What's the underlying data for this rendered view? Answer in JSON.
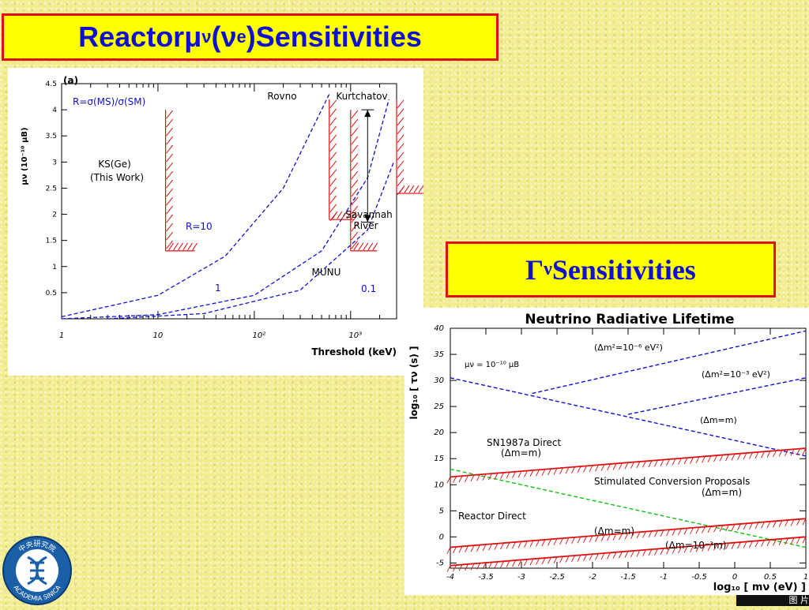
{
  "title": {
    "prefix": "Reactor ",
    "mu": "μ",
    "mu_sub": "ν",
    "paren_open": "(",
    "nu": "ν",
    "nu_sub": "e",
    "paren_close": ")",
    "suffix": " Sensitivities"
  },
  "gamma_title": {
    "gamma": "Γ",
    "sub": "ν",
    "text": " Sensitivities"
  },
  "chart_data": [
    {
      "type": "line",
      "panel_label": "(a)",
      "ylabel": "μν (10⁻¹⁰ μB)",
      "xlabel": "Threshold (keV)",
      "x_scale": "log",
      "xlim": [
        1,
        3000
      ],
      "ylim": [
        0,
        4.5
      ],
      "y_ticks": [
        "0.5",
        "1",
        "1.5",
        "2",
        "2.5",
        "3",
        "3.5",
        "4",
        "4.5"
      ],
      "x_ticks": [
        "1",
        "10",
        "10²",
        "10³"
      ],
      "annotation_ratio": "R=σ(MS)/σ(SM)",
      "series": [
        {
          "name": "R=10",
          "style": "dashed",
          "color": "#1010d0",
          "x": [
            1,
            10,
            50,
            200,
            600
          ],
          "y": [
            0.04,
            0.45,
            1.2,
            2.5,
            4.3
          ]
        },
        {
          "name": "1",
          "style": "dashed",
          "color": "#1010d0",
          "x": [
            1,
            10,
            100,
            500,
            1500,
            2500
          ],
          "y": [
            0.0,
            0.08,
            0.45,
            1.3,
            2.7,
            4.2
          ]
        },
        {
          "name": "0.1",
          "style": "dashed",
          "color": "#1010d0",
          "x": [
            3,
            30,
            300,
            1500,
            2800
          ],
          "y": [
            0.0,
            0.1,
            0.55,
            1.7,
            3.0
          ]
        }
      ],
      "experiments": [
        {
          "label": "KS(Ge)\n(This Work)",
          "x": 12,
          "ymin": 1.3,
          "ymax": 4.0,
          "xwidth": 1.6
        },
        {
          "label": "Rovno",
          "x": 600,
          "ymin": 1.9,
          "ymax": 4.2,
          "xwidth": 1.4
        },
        {
          "label": "MUNU",
          "x": 1000,
          "ymin": 1.3,
          "ymax": 4.0,
          "xwidth": 1.5
        },
        {
          "label": "Kurtchatov",
          "x": 3000,
          "ymin": 2.4,
          "ymax": 4.2,
          "xwidth": 1.6
        }
      ],
      "arrow": {
        "label": "Savannah\nRiver",
        "x": 1500,
        "ymin": 1.85,
        "ymax": 4.0
      }
    },
    {
      "type": "line",
      "title": "Neutrino Radiative Lifetime",
      "ylabel": "log₁₀ [ τν (s) ]",
      "xlabel": "log₁₀ [ mν (eV) ]",
      "xlim": [
        -4,
        1
      ],
      "ylim": [
        -6,
        40
      ],
      "x_ticks": [
        "-4",
        "-3.5",
        "-3",
        "-2.5",
        "-2",
        "-1.5",
        "-1",
        "-0.5",
        "0",
        "0.5",
        "1"
      ],
      "y_ticks": [
        "-5",
        "0",
        "5",
        "10",
        "15",
        "20",
        "25",
        "30",
        "35",
        "40"
      ],
      "series": [
        {
          "name": "μν = 10⁻¹⁰ μB",
          "style": "dashed",
          "color": "#1010d0",
          "x": [
            -4,
            1
          ],
          "y": [
            30.5,
            15.5
          ]
        },
        {
          "name": "(Δm²=10⁻⁶ eV²)",
          "style": "dashed",
          "color": "#1010d0",
          "x": [
            -2.85,
            1
          ],
          "y": [
            27.5,
            39.5
          ]
        },
        {
          "name": "(Δm²=10⁻³ eV²)",
          "style": "dashed",
          "color": "#1010d0",
          "x": [
            -1.5,
            1
          ],
          "y": [
            23.5,
            30.5
          ]
        },
        {
          "name": "Stimulated Conversion Proposals",
          "style": "dashed",
          "color": "#10c010",
          "x": [
            -4,
            1
          ],
          "y": [
            13.0,
            -2.0
          ]
        },
        {
          "name": "SN1987a Direct (Δm=m)",
          "style": "hatched",
          "color": "#e01010",
          "x": [
            -4,
            1
          ],
          "y": [
            11.5,
            17.0
          ]
        },
        {
          "name": "Reactor Direct (Δm=m)",
          "style": "hatched",
          "color": "#e01010",
          "x": [
            -4,
            1
          ],
          "y": [
            -2.0,
            3.5
          ]
        },
        {
          "name": "(Δm=10⁻³m)",
          "style": "hatched",
          "color": "#e01010",
          "x": [
            -4,
            1
          ],
          "y": [
            -5.5,
            0.0
          ]
        }
      ],
      "labels": {
        "mu_line": "μν = 10⁻¹⁰ μB",
        "dm2_6": "(Δm²=10⁻⁶ eV²)",
        "dm2_3": "(Δm²=10⁻³ eV²)",
        "dm_eq_upper": "(Δm=m)",
        "sn1987a": "SN1987a Direct",
        "sn_dm": "(Δm=m)",
        "stim": "Stimulated Conversion Proposals",
        "stim_dm": "(Δm=m)",
        "reactor": "Reactor Direct",
        "reactor_dm": "(Δm=m)",
        "reactor_dm3": "(Δm=10⁻³m)"
      }
    }
  ],
  "logo": {
    "text": "ACADEMIA SINICA",
    "chinese": "中央研究院"
  },
  "corner_text": "图 片"
}
